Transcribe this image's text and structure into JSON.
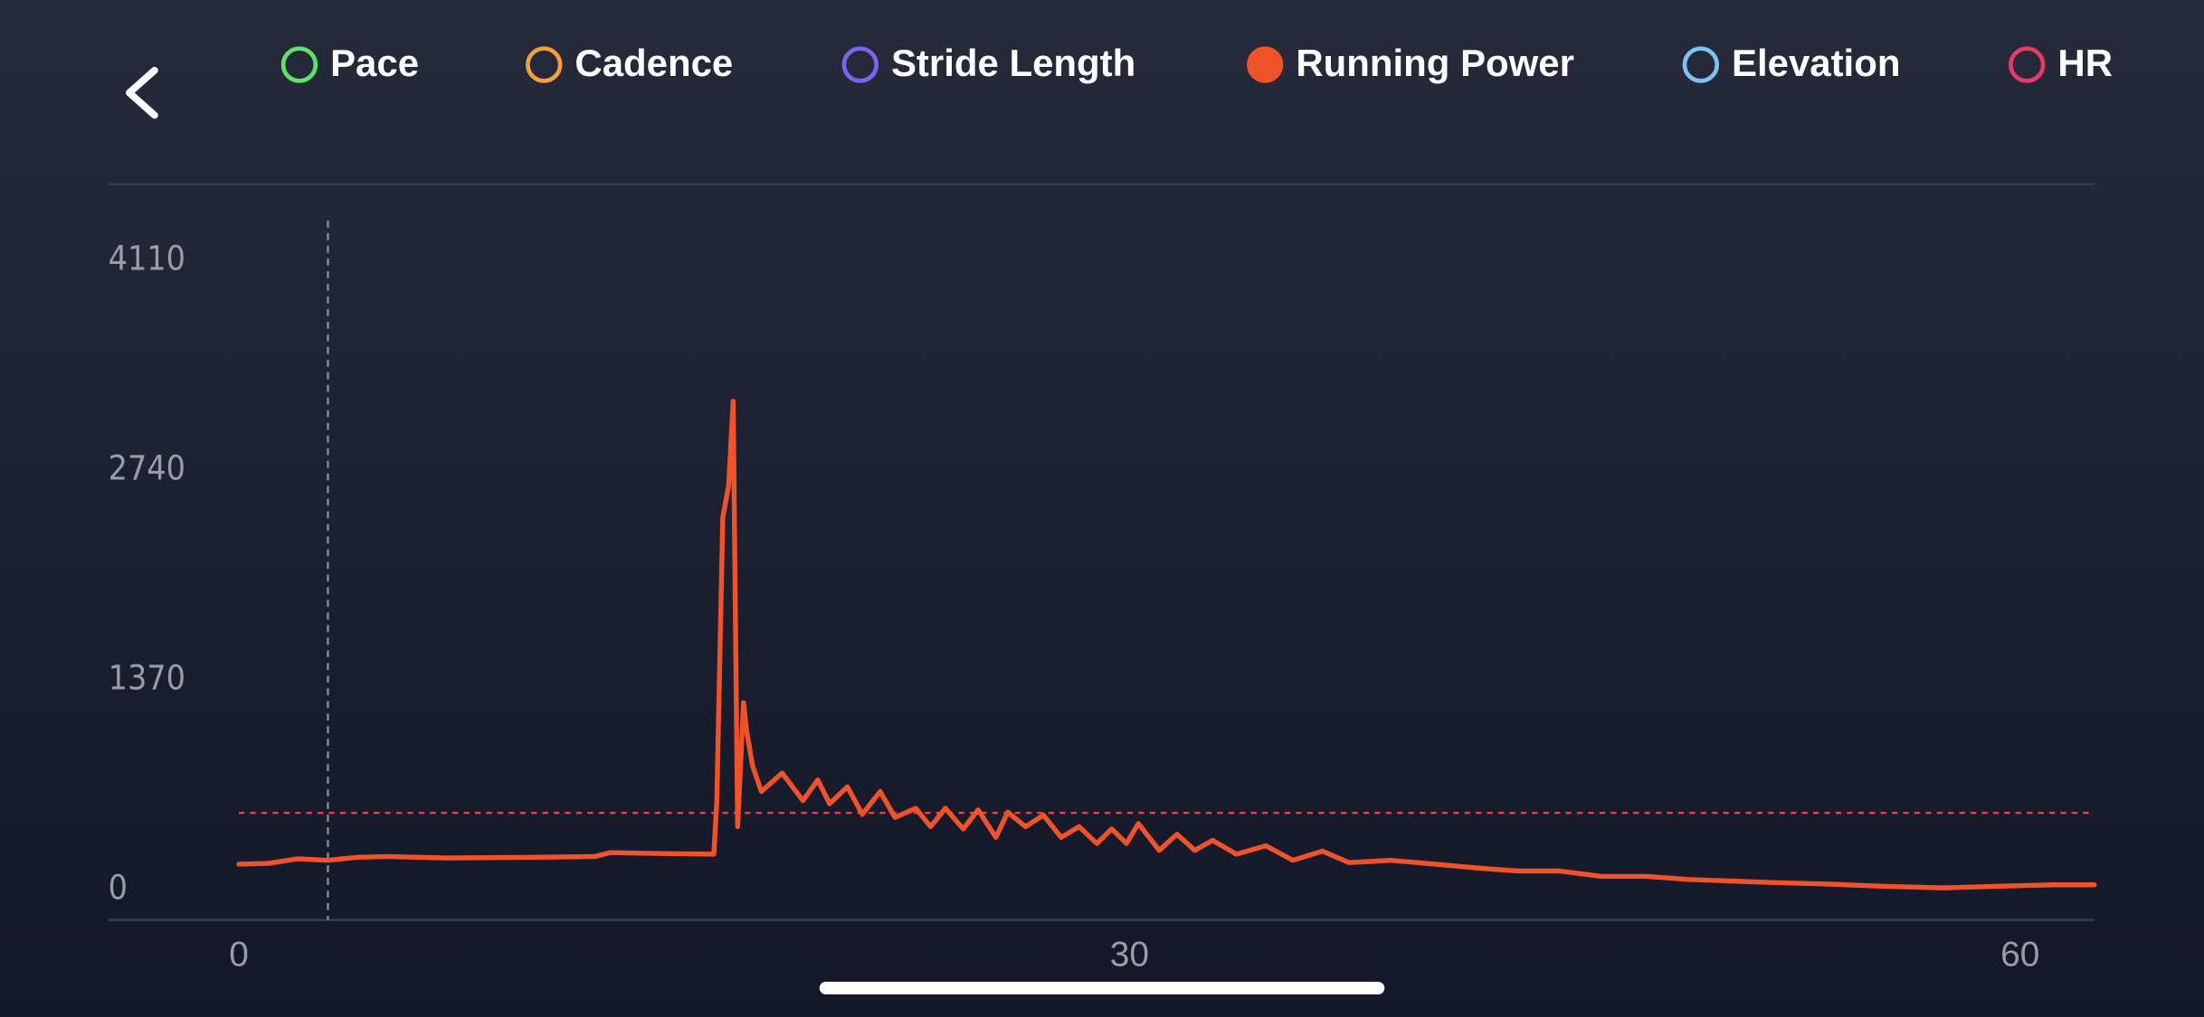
{
  "chart_data": {
    "type": "line",
    "legend": [
      {
        "name": "Pace",
        "color": "#5ee36a",
        "active": false
      },
      {
        "name": "Cadence",
        "color": "#f0a040",
        "active": false
      },
      {
        "name": "Stride Length",
        "color": "#7d63f0",
        "active": false
      },
      {
        "name": "Running Power",
        "color": "#f0522a",
        "active": true
      },
      {
        "name": "Elevation",
        "color": "#7fc2f2",
        "active": false
      },
      {
        "name": "HR",
        "color": "#e83a62",
        "active": false
      }
    ],
    "x": [
      0,
      1,
      2,
      3,
      4,
      5,
      7,
      10,
      12,
      12.5,
      14,
      16,
      16.1,
      16.3,
      16.5,
      16.65,
      16.8,
      17.0,
      17.1,
      17.3,
      17.6,
      18.3,
      19.0,
      19.5,
      19.9,
      20.5,
      21.0,
      21.6,
      22.1,
      22.8,
      23.3,
      23.8,
      24.4,
      24.9,
      25.5,
      25.9,
      26.5,
      27.1,
      27.7,
      28.3,
      28.9,
      29.4,
      29.9,
      30.3,
      31.0,
      31.6,
      32.2,
      32.8,
      33.6,
      34.6,
      35.5,
      36.5,
      37.4,
      38.8,
      40.3,
      41.7,
      43.1,
      44.5,
      45.9,
      47.4,
      48.8,
      50.2,
      51.6,
      53.5,
      55.4,
      57.4,
      59.2,
      61.1,
      62.5
    ],
    "series": [
      {
        "name": "Running Power",
        "color": "#f0522a",
        "values": [
          165,
          170,
          200,
          190,
          210,
          215,
          205,
          210,
          215,
          240,
          235,
          230,
          580,
          2430,
          2640,
          3190,
          410,
          1220,
          1040,
          810,
          640,
          760,
          580,
          715,
          560,
          670,
          490,
          640,
          470,
          530,
          410,
          530,
          395,
          520,
          340,
          505,
          410,
          485,
          340,
          410,
          300,
          395,
          300,
          430,
          255,
          360,
          255,
          320,
          230,
          285,
          190,
          250,
          175,
          190,
          165,
          140,
          120,
          120,
          85,
          85,
          65,
          55,
          45,
          35,
          20,
          10,
          20,
          30,
          30
        ]
      }
    ],
    "xlim": [
      -4.4,
      62.5
    ],
    "ylim": [
      -200,
      4370
    ],
    "xticks": [
      0,
      30,
      60
    ],
    "yticks": [
      0,
      1370,
      2740,
      4110
    ],
    "reference_line": 500,
    "cursor_x": 3
  }
}
